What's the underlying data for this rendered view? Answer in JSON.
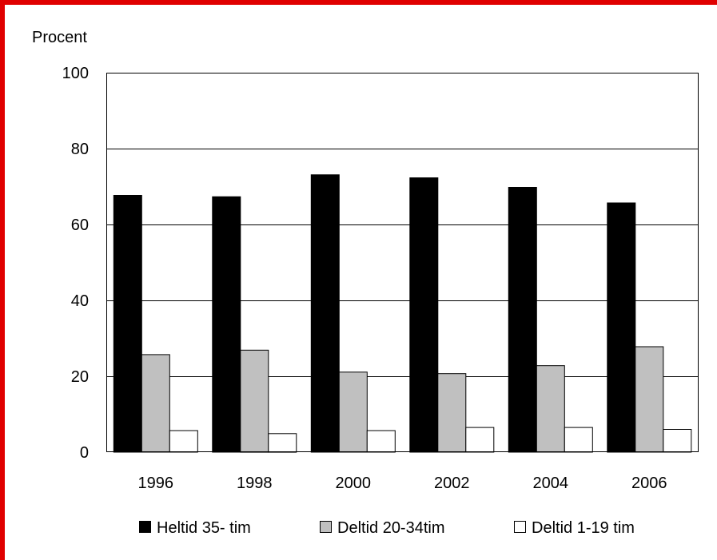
{
  "frame": {
    "border_color": "#e00000"
  },
  "chart_data": {
    "type": "bar",
    "title": "",
    "xlabel": "",
    "ylabel": "Procent",
    "ylim": [
      0,
      100
    ],
    "yticks": [
      0,
      20,
      40,
      60,
      80,
      100
    ],
    "grid": true,
    "legend_position": "bottom",
    "categories": [
      "1996",
      "1998",
      "2000",
      "2002",
      "2004",
      "2006"
    ],
    "series": [
      {
        "name": "Heltid 35- tim",
        "values": [
          67.8,
          67.4,
          73.2,
          72.4,
          69.9,
          65.8
        ],
        "color": "#000000"
      },
      {
        "name": "Deltid 20-34tim",
        "values": [
          25.8,
          27.0,
          21.2,
          20.8,
          22.9,
          27.9
        ],
        "color": "#c0c0c0"
      },
      {
        "name": "Deltid 1-19 tim",
        "values": [
          5.8,
          5.0,
          5.8,
          6.6,
          6.6,
          6.1
        ],
        "color": "#ffffff"
      }
    ]
  }
}
